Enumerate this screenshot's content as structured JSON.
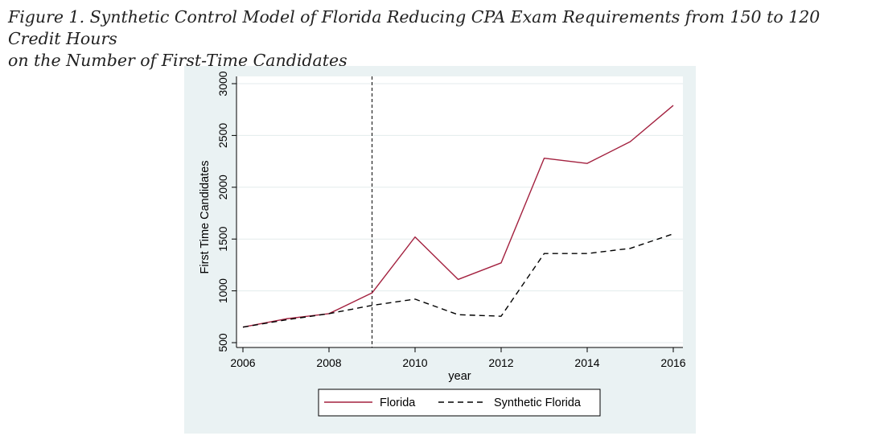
{
  "caption": {
    "line1": "Figure 1. Synthetic Control Model of Florida Reducing CPA Exam Requirements from 150 to 120 Credit Hours",
    "line2": "on the Number of First-Time Candidates"
  },
  "colors": {
    "figure_background": "#eaf2f3",
    "florida": "#a3213f",
    "synthetic": "#000000"
  },
  "chart_data": {
    "type": "line",
    "title": "",
    "xlabel": "year",
    "ylabel": "First Time Candidates",
    "xlim": [
      2006,
      2016
    ],
    "ylim": [
      500,
      3000
    ],
    "xticks": [
      2006,
      2008,
      2010,
      2012,
      2014,
      2016
    ],
    "yticks": [
      500,
      1000,
      1500,
      2000,
      2500,
      3000
    ],
    "grid": true,
    "treatment_line_x": 2009,
    "legend_position": "bottom",
    "x": [
      2006,
      2007,
      2008,
      2009,
      2010,
      2011,
      2012,
      2013,
      2014,
      2015,
      2016
    ],
    "series": [
      {
        "name": "Florida",
        "style": "solid",
        "color": "#a3213f",
        "values": [
          650,
          730,
          780,
          980,
          1520,
          1110,
          1270,
          2280,
          2230,
          2440,
          2790
        ]
      },
      {
        "name": "Synthetic Florida",
        "style": "dashed",
        "color": "#000000",
        "values": [
          650,
          720,
          780,
          860,
          920,
          770,
          755,
          1360,
          1360,
          1410,
          1550
        ]
      }
    ]
  }
}
